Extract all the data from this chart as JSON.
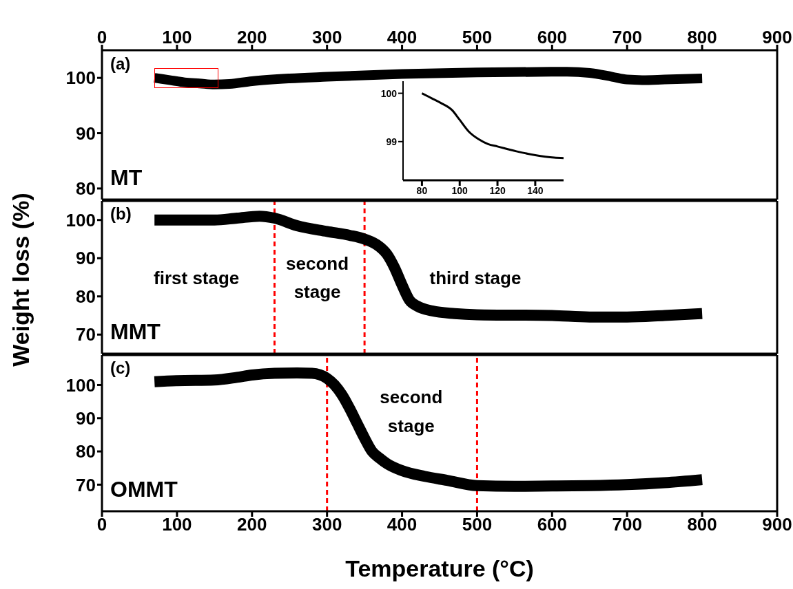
{
  "chart_data": [
    {
      "type": "line",
      "xlim": [
        0,
        900
      ],
      "xticks": [
        0,
        100,
        200,
        300,
        400,
        500,
        600,
        700,
        800,
        900
      ],
      "x2lim": [
        0,
        900
      ],
      "x2ticks": [
        0,
        100,
        200,
        300,
        400,
        500,
        600,
        700,
        800,
        900
      ],
      "ylim": [
        78,
        105
      ],
      "yticks": [
        80,
        90,
        100
      ],
      "tick_labels": "y",
      "annotations": [
        "(a)"
      ],
      "x": [
        70,
        90,
        110,
        130,
        150,
        170,
        200,
        250,
        300,
        400,
        500,
        600,
        620,
        650,
        680,
        700,
        720,
        750,
        800
      ],
      "series": [
        {
          "name": "MT",
          "color": "#000000",
          "values": [
            100,
            99.6,
            99.2,
            99,
            98.8,
            98.9,
            99.4,
            99.9,
            100.2,
            100.7,
            101,
            101.1,
            101.1,
            100.9,
            100.2,
            99.7,
            99.6,
            99.7,
            99.9
          ]
        }
      ]
    },
    {
      "type": "line",
      "xlim": [
        0,
        900
      ],
      "xticks": [
        0,
        100,
        200,
        300,
        400,
        500,
        600,
        700,
        800,
        900
      ],
      "ylim": [
        65,
        105
      ],
      "yticks": [
        70,
        80,
        90,
        100
      ],
      "tick_labels": "y",
      "ylabel": "Weight loss (%)",
      "annotations": [
        "(b)",
        "first stage",
        "second stage",
        "third stage"
      ],
      "ref_lines": [
        {
          "axis": "x",
          "value": 230,
          "color": "#ff0000",
          "line_style": "dashed"
        },
        {
          "axis": "x",
          "value": 350,
          "color": "#ff0000",
          "line_style": "dashed"
        }
      ],
      "x": [
        70,
        100,
        150,
        180,
        210,
        230,
        260,
        300,
        330,
        350,
        370,
        380,
        390,
        400,
        410,
        420,
        440,
        470,
        500,
        600,
        650,
        700,
        750,
        800
      ],
      "series": [
        {
          "name": "MMT",
          "color": "#000000",
          "values": [
            100,
            100,
            100,
            100.5,
            101,
            100.5,
            98.5,
            97,
            96,
            95,
            93,
            91,
            87.5,
            83,
            79,
            77.5,
            76.2,
            75.5,
            75.2,
            75,
            74.6,
            74.6,
            75,
            75.5
          ]
        }
      ]
    },
    {
      "type": "line",
      "xlim": [
        0,
        900
      ],
      "xticks": [
        0,
        100,
        200,
        300,
        400,
        500,
        600,
        700,
        800,
        900
      ],
      "ylim": [
        62,
        109
      ],
      "yticks": [
        70,
        80,
        90,
        100
      ],
      "xlabel": "Temperature (°C)",
      "annotations": [
        "(c)",
        "second stage"
      ],
      "ref_lines": [
        {
          "axis": "x",
          "value": 300,
          "color": "#ff0000",
          "line_style": "dashed"
        },
        {
          "axis": "x",
          "value": 500,
          "color": "#ff0000",
          "line_style": "dashed"
        }
      ],
      "x": [
        70,
        100,
        150,
        180,
        200,
        230,
        260,
        280,
        300,
        310,
        320,
        330,
        340,
        350,
        360,
        370,
        380,
        400,
        430,
        460,
        500,
        550,
        600,
        650,
        700,
        750,
        800
      ],
      "series": [
        {
          "name": "OMMT",
          "color": "#000000",
          "values": [
            101,
            101.3,
            101.5,
            102.3,
            103,
            103.5,
            103.6,
            103.5,
            102,
            100,
            97,
            93,
            88.5,
            84,
            80,
            78,
            76.3,
            74.2,
            72.5,
            71.3,
            69.7,
            69.5,
            69.6,
            69.7,
            70,
            70.6,
            71.5
          ]
        }
      ]
    },
    {
      "type": "line",
      "xlim": [
        70,
        155
      ],
      "xticks": [
        80,
        100,
        120,
        140
      ],
      "ylim": [
        98.2,
        100.25
      ],
      "yticks": [
        99,
        100
      ],
      "x": [
        80,
        85,
        90,
        96,
        100,
        105,
        110,
        115,
        120,
        130,
        140,
        150,
        155
      ],
      "series": [
        {
          "color": "#000000",
          "values": [
            100,
            99.9,
            99.8,
            99.65,
            99.45,
            99.2,
            99.05,
            98.95,
            98.9,
            98.8,
            98.72,
            98.67,
            98.66
          ]
        }
      ]
    }
  ]
}
